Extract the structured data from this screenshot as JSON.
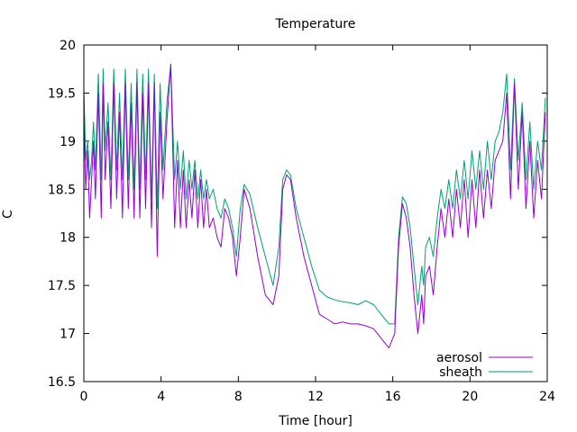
{
  "chart_data": {
    "type": "line",
    "title": "Temperature",
    "xlabel": "Time [hour]",
    "ylabel": "C",
    "xlim": [
      0,
      24
    ],
    "ylim": [
      16.5,
      20
    ],
    "xticks": [
      0,
      4,
      8,
      12,
      16,
      20,
      24
    ],
    "yticks": [
      16.5,
      17,
      17.5,
      18,
      18.5,
      19,
      19.5,
      20
    ],
    "ytick_labels": [
      "16.5",
      "17",
      "17.5",
      "18",
      "18.5",
      "19",
      "19.5",
      "20"
    ],
    "grid": false,
    "legend": "bottom-right",
    "series": [
      {
        "name": "aerosol",
        "color": "#9400d3",
        "x": [
          0.0,
          0.1,
          0.2,
          0.3,
          0.4,
          0.5,
          0.6,
          0.75,
          0.9,
          1.0,
          1.1,
          1.25,
          1.4,
          1.55,
          1.7,
          1.85,
          2.0,
          2.15,
          2.3,
          2.45,
          2.6,
          2.75,
          2.9,
          3.05,
          3.2,
          3.35,
          3.5,
          3.65,
          3.8,
          3.95,
          4.1,
          4.3,
          4.5,
          4.7,
          4.85,
          5.0,
          5.15,
          5.3,
          5.45,
          5.6,
          5.75,
          5.9,
          6.05,
          6.2,
          6.35,
          6.5,
          6.7,
          6.9,
          7.1,
          7.3,
          7.5,
          7.7,
          7.9,
          8.1,
          8.3,
          8.6,
          9.0,
          9.4,
          9.8,
          10.1,
          10.3,
          10.5,
          10.7,
          11.0,
          11.4,
          11.8,
          12.2,
          12.6,
          13.0,
          13.4,
          13.8,
          14.2,
          14.6,
          15.0,
          15.4,
          15.8,
          16.1,
          16.3,
          16.5,
          16.7,
          16.9,
          17.1,
          17.3,
          17.5,
          17.6,
          17.7,
          17.9,
          18.1,
          18.3,
          18.5,
          18.7,
          18.9,
          19.1,
          19.3,
          19.5,
          19.7,
          19.9,
          20.1,
          20.3,
          20.5,
          20.7,
          20.9,
          21.1,
          21.3,
          21.5,
          21.7,
          21.9,
          22.1,
          22.3,
          22.5,
          22.7,
          22.9,
          23.1,
          23.3,
          23.5,
          23.7,
          23.9
        ],
        "y": [
          19.3,
          18.5,
          18.9,
          18.2,
          18.6,
          19.0,
          18.4,
          19.5,
          18.2,
          19.6,
          18.6,
          19.2,
          18.3,
          19.6,
          18.4,
          19.3,
          18.2,
          19.6,
          18.3,
          19.4,
          18.2,
          19.6,
          18.2,
          19.5,
          18.3,
          19.6,
          18.1,
          19.6,
          17.8,
          19.3,
          18.4,
          19.2,
          19.8,
          18.1,
          18.8,
          18.1,
          18.7,
          18.1,
          18.6,
          18.2,
          18.7,
          18.1,
          18.6,
          18.1,
          18.5,
          18.1,
          18.2,
          18.0,
          17.9,
          18.3,
          18.2,
          18.0,
          17.6,
          18.0,
          18.5,
          18.3,
          17.8,
          17.4,
          17.3,
          17.6,
          18.5,
          18.65,
          18.6,
          18.2,
          17.8,
          17.5,
          17.2,
          17.15,
          17.1,
          17.12,
          17.1,
          17.1,
          17.08,
          17.05,
          16.95,
          16.85,
          17.0,
          17.9,
          18.35,
          18.2,
          17.9,
          17.4,
          17.0,
          17.4,
          17.1,
          17.6,
          17.7,
          17.4,
          17.9,
          18.3,
          18.0,
          18.4,
          18.0,
          18.5,
          18.1,
          18.6,
          18.0,
          18.6,
          18.1,
          18.7,
          18.2,
          18.7,
          18.3,
          18.8,
          18.9,
          19.0,
          19.5,
          18.4,
          19.6,
          18.5,
          19.3,
          18.3,
          19.0,
          18.2,
          18.8,
          18.4,
          19.3
        ]
      },
      {
        "name": "sheath",
        "color": "#009e73",
        "x": [
          0.0,
          0.1,
          0.2,
          0.3,
          0.4,
          0.5,
          0.6,
          0.75,
          0.9,
          1.0,
          1.1,
          1.25,
          1.4,
          1.55,
          1.7,
          1.85,
          2.0,
          2.15,
          2.3,
          2.45,
          2.6,
          2.75,
          2.9,
          3.05,
          3.2,
          3.35,
          3.5,
          3.65,
          3.8,
          3.95,
          4.1,
          4.3,
          4.5,
          4.7,
          4.85,
          5.0,
          5.15,
          5.3,
          5.45,
          5.6,
          5.75,
          5.9,
          6.05,
          6.2,
          6.35,
          6.5,
          6.7,
          6.9,
          7.1,
          7.3,
          7.5,
          7.7,
          7.9,
          8.1,
          8.3,
          8.6,
          9.0,
          9.4,
          9.8,
          10.1,
          10.3,
          10.5,
          10.7,
          11.0,
          11.4,
          11.8,
          12.2,
          12.6,
          13.0,
          13.4,
          13.8,
          14.2,
          14.6,
          15.0,
          15.4,
          15.8,
          16.1,
          16.3,
          16.5,
          16.7,
          16.9,
          17.1,
          17.3,
          17.5,
          17.6,
          17.7,
          17.9,
          18.1,
          18.3,
          18.5,
          18.7,
          18.9,
          19.1,
          19.3,
          19.5,
          19.7,
          19.9,
          20.1,
          20.3,
          20.5,
          20.7,
          20.9,
          21.1,
          21.3,
          21.5,
          21.7,
          21.9,
          22.1,
          22.3,
          22.5,
          22.7,
          22.9,
          23.1,
          23.3,
          23.5,
          23.7,
          23.9
        ],
        "y": [
          19.55,
          18.8,
          19.0,
          18.6,
          18.8,
          19.2,
          18.7,
          19.7,
          18.6,
          19.75,
          18.9,
          19.4,
          18.6,
          19.75,
          18.7,
          19.5,
          18.6,
          19.75,
          18.6,
          19.6,
          18.5,
          19.75,
          18.5,
          19.7,
          18.6,
          19.75,
          18.4,
          19.7,
          18.3,
          19.6,
          18.7,
          19.4,
          19.8,
          18.6,
          19.0,
          18.5,
          18.9,
          18.4,
          18.8,
          18.5,
          18.8,
          18.4,
          18.7,
          18.4,
          18.6,
          18.4,
          18.5,
          18.3,
          18.2,
          18.4,
          18.3,
          18.1,
          17.8,
          18.3,
          18.55,
          18.45,
          18.1,
          17.8,
          17.5,
          17.9,
          18.6,
          18.7,
          18.65,
          18.3,
          18.0,
          17.7,
          17.45,
          17.38,
          17.35,
          17.33,
          17.32,
          17.3,
          17.34,
          17.3,
          17.2,
          17.1,
          17.1,
          18.0,
          18.42,
          18.35,
          18.1,
          17.7,
          17.3,
          17.7,
          17.5,
          17.9,
          18.0,
          17.8,
          18.2,
          18.5,
          18.3,
          18.6,
          18.3,
          18.7,
          18.4,
          18.8,
          18.4,
          18.9,
          18.5,
          18.9,
          18.5,
          19.0,
          18.6,
          19.0,
          19.1,
          19.3,
          19.7,
          18.7,
          19.65,
          18.8,
          19.4,
          18.6,
          19.2,
          18.5,
          19.0,
          18.7,
          19.45
        ]
      }
    ]
  }
}
